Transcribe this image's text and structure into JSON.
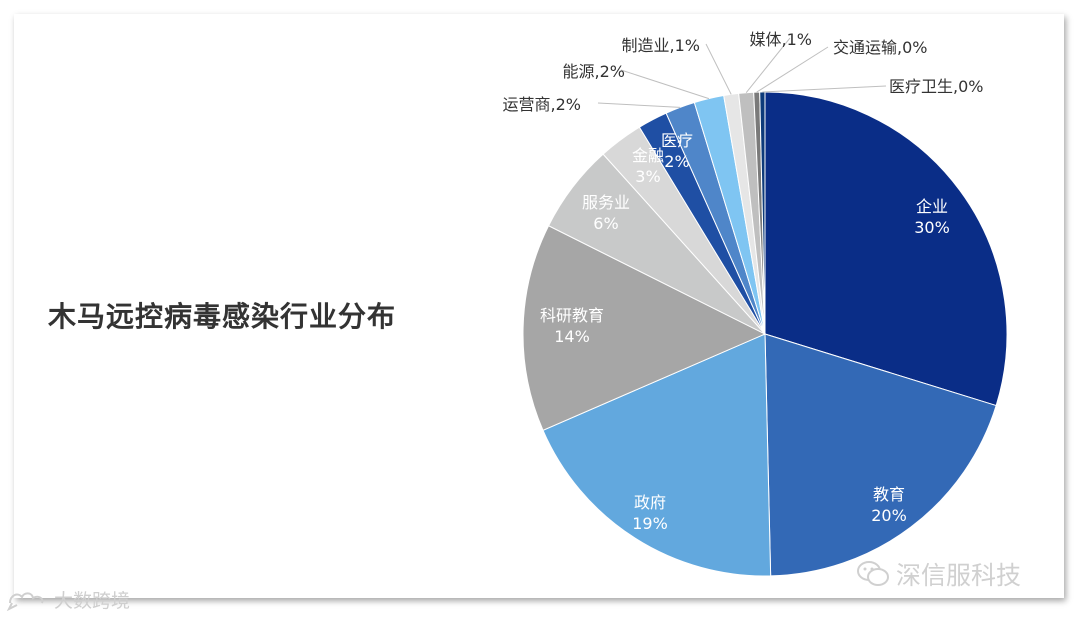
{
  "chart_data": {
    "type": "pie",
    "title": "木马远控病毒感染行业分布",
    "slices": [
      {
        "name": "企业",
        "pct_label": "30%",
        "value": 30,
        "color": "#0a2d87",
        "label_color": "#ffffff",
        "label_pos": "inside"
      },
      {
        "name": "教育",
        "pct_label": "20%",
        "value": 20,
        "color": "#3369b6",
        "label_color": "#ffffff",
        "label_pos": "inside"
      },
      {
        "name": "政府",
        "pct_label": "19%",
        "value": 19,
        "color": "#62a8de",
        "label_color": "#ffffff",
        "label_pos": "inside"
      },
      {
        "name": "科研教育",
        "pct_label": "14%",
        "value": 14,
        "color": "#a6a6a6",
        "label_color": "#ffffff",
        "label_pos": "inside"
      },
      {
        "name": "服务业",
        "pct_label": "6%",
        "value": 6,
        "color": "#c8c9c9",
        "label_color": "#ffffff",
        "label_pos": "inside"
      },
      {
        "name": "金融",
        "pct_label": "3%",
        "value": 3,
        "color": "#d8d8d8",
        "label_color": "#ffffff",
        "label_pos": "inside"
      },
      {
        "name": "医疗",
        "pct_label": "2%",
        "value": 2,
        "color": "#1f4fa4",
        "label_color": "#ffffff",
        "label_pos": "inside"
      },
      {
        "name": "运营商",
        "pct_label": "2%",
        "value": 2,
        "color": "#4f86c9",
        "label_color": "#333333",
        "label_pos": "outside"
      },
      {
        "name": "能源",
        "pct_label": "2%",
        "value": 2,
        "color": "#7fc5f2",
        "label_color": "#333333",
        "label_pos": "outside"
      },
      {
        "name": "制造业",
        "pct_label": "1%",
        "value": 1,
        "color": "#e6e6e6",
        "label_color": "#333333",
        "label_pos": "outside"
      },
      {
        "name": "媒体",
        "pct_label": "1%",
        "value": 1,
        "color": "#bfbfbf",
        "label_color": "#333333",
        "label_pos": "outside"
      },
      {
        "name": "交通运输",
        "pct_label": "0%",
        "value": 0.4,
        "color": "#7a7a7a",
        "label_color": "#333333",
        "label_pos": "outside"
      },
      {
        "name": "医疗卫生",
        "pct_label": "0%",
        "value": 0.35,
        "color": "#0d3a7a",
        "label_color": "#333333",
        "label_pos": "outside"
      }
    ],
    "start_angle_deg": 0,
    "direction": "clockwise",
    "legend": "none"
  },
  "watermarks": {
    "right": "深信服科技",
    "left": "大数跨境"
  }
}
